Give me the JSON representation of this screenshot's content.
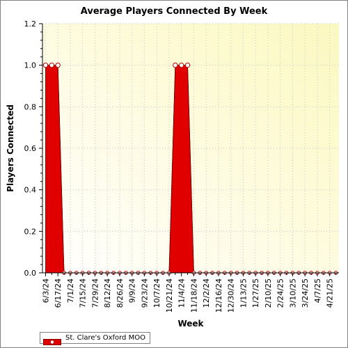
{
  "chart_data": {
    "type": "area",
    "title": "Average Players Connected By Week",
    "xlabel": "Week",
    "ylabel": "Players Connected",
    "ylim": [
      0,
      1.2
    ],
    "yticks": [
      "0.0",
      "0.2",
      "0.4",
      "0.6",
      "0.8",
      "1.0",
      "1.2"
    ],
    "x_tick_labels": [
      "6/3/24",
      "6/17/24",
      "7/1/24",
      "7/15/24",
      "7/29/24",
      "8/12/24",
      "8/26/24",
      "9/9/24",
      "9/23/24",
      "10/7/24",
      "10/21/24",
      "11/4/24",
      "11/18/24",
      "12/2/24",
      "12/16/24",
      "12/30/24",
      "1/13/25",
      "1/27/25",
      "2/10/25",
      "2/24/25",
      "3/10/25",
      "3/24/25",
      "4/7/25",
      "4/21/25"
    ],
    "grid": true,
    "legend": "bottom-left",
    "series": [
      {
        "name": "St. Clare's Oxford MOO",
        "color": "#e00000",
        "x": [
          "6/3/24",
          "6/10/24",
          "6/17/24",
          "6/24/24",
          "7/1/24",
          "7/8/24",
          "7/15/24",
          "7/22/24",
          "7/29/24",
          "8/5/24",
          "8/12/24",
          "8/19/24",
          "8/26/24",
          "9/2/24",
          "9/9/24",
          "9/16/24",
          "9/23/24",
          "9/30/24",
          "10/7/24",
          "10/14/24",
          "10/21/24",
          "10/28/24",
          "11/4/24",
          "11/11/24",
          "11/18/24",
          "11/25/24",
          "12/2/24",
          "12/9/24",
          "12/16/24",
          "12/23/24",
          "12/30/24",
          "1/6/25",
          "1/13/25",
          "1/20/25",
          "1/27/25",
          "2/3/25",
          "2/10/25",
          "2/17/25",
          "2/24/25",
          "3/3/25",
          "3/10/25",
          "3/17/25",
          "3/24/25",
          "3/31/25",
          "4/7/25",
          "4/14/25",
          "4/21/25",
          "4/28/25"
        ],
        "values": [
          1,
          1,
          1,
          0,
          0,
          0,
          0,
          0,
          0,
          0,
          0,
          0,
          0,
          0,
          0,
          0,
          0,
          0,
          0,
          0,
          0,
          1,
          1,
          1,
          0,
          0,
          0,
          0,
          0,
          0,
          0,
          0,
          0,
          0,
          0,
          0,
          0,
          0,
          0,
          0,
          0,
          0,
          0,
          0,
          0,
          0,
          0,
          0
        ]
      }
    ]
  }
}
